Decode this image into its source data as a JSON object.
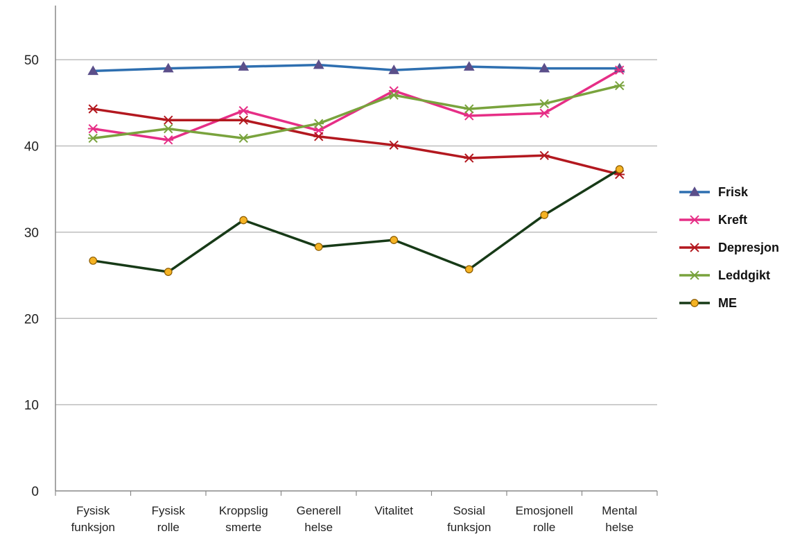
{
  "chart_data": {
    "type": "line",
    "title": "",
    "xlabel": "",
    "ylabel": "",
    "ylim": [
      0,
      55
    ],
    "yticks": [
      0,
      10,
      20,
      30,
      40,
      50
    ],
    "grid": "horizontal",
    "legend_position": "right",
    "categories": [
      [
        "Fysisk",
        "funksjon"
      ],
      [
        "Fysisk",
        "rolle"
      ],
      [
        "Kroppslig",
        "smerte"
      ],
      [
        "Generell",
        "helse"
      ],
      [
        "Vitalitet"
      ],
      [
        "Sosial",
        "funksjon"
      ],
      [
        "Emosjonell",
        "rolle"
      ],
      [
        "Mental",
        "helse"
      ]
    ],
    "series": [
      {
        "name": "Frisk",
        "color": "#2e6fb0",
        "marker": "triangle",
        "marker_color": "#5b4f8a",
        "values": [
          48.7,
          49.0,
          49.2,
          49.4,
          48.8,
          49.2,
          49.0,
          49.0
        ]
      },
      {
        "name": "Kreft",
        "color": "#e62e86",
        "marker": "star",
        "marker_color": "#e62e86",
        "values": [
          42.0,
          40.7,
          44.1,
          41.8,
          46.4,
          43.5,
          43.8,
          48.8
        ]
      },
      {
        "name": "Depresjon",
        "color": "#b3181f",
        "marker": "star",
        "marker_color": "#b3181f",
        "values": [
          44.3,
          43.0,
          43.0,
          41.1,
          40.1,
          38.6,
          38.9,
          36.7
        ]
      },
      {
        "name": "Leddgikt",
        "color": "#79a33d",
        "marker": "star",
        "marker_color": "#79a33d",
        "values": [
          40.9,
          42.0,
          40.9,
          42.6,
          45.9,
          44.3,
          44.9,
          47.0
        ]
      },
      {
        "name": "ME",
        "color": "#173a17",
        "marker": "circle",
        "marker_color": "#f5b324",
        "values": [
          26.7,
          25.4,
          31.4,
          28.3,
          29.1,
          25.7,
          32.0,
          37.3
        ]
      }
    ]
  }
}
